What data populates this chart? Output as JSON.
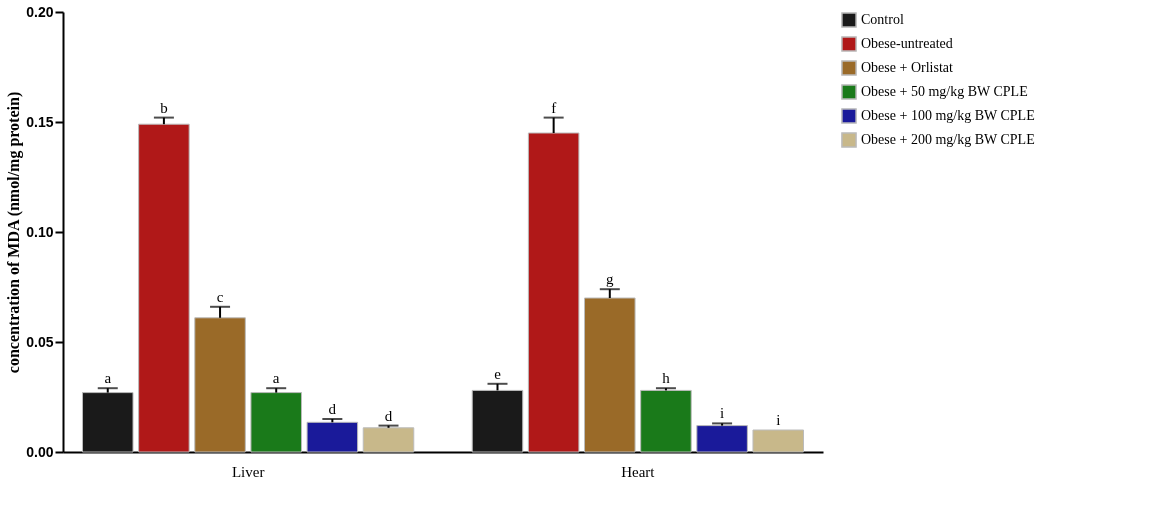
{
  "chart_data": {
    "type": "bar",
    "ylabel": "concentration of MDA (nmol/mg protein)",
    "categories": [
      "Liver",
      "Heart"
    ],
    "series": [
      {
        "name": "Control",
        "color": "#1a1a1a",
        "values": [
          0.027,
          0.028
        ],
        "errors": [
          [
            0.027,
            0.029
          ],
          [
            0.028,
            0.031
          ]
        ],
        "value_labels": [
          "a",
          "e"
        ]
      },
      {
        "name": "Obese-untreated",
        "color": "#b01818",
        "values": [
          0.149,
          0.145
        ],
        "errors": [
          [
            0.149,
            0.152
          ],
          [
            0.145,
            0.152
          ]
        ],
        "value_labels": [
          "b",
          "f"
        ]
      },
      {
        "name": "Obese + Orlistat",
        "color": "#9a6a28",
        "values": [
          0.061,
          0.07
        ],
        "errors": [
          [
            0.061,
            0.066
          ],
          [
            0.07,
            0.074
          ]
        ],
        "value_labels": [
          "c",
          "g"
        ]
      },
      {
        "name": "Obese + 50 mg/kg BW CPLE",
        "color": "#1a7a1a",
        "values": [
          0.027,
          0.028
        ],
        "errors": [
          [
            0.027,
            0.029
          ],
          [
            0.028,
            0.029
          ]
        ],
        "value_labels": [
          "a",
          "h"
        ]
      },
      {
        "name": "Obese + 100 mg/kg BW CPLE",
        "color": "#1a1a9a",
        "values": [
          0.0135,
          0.012
        ],
        "errors": [
          [
            0.0135,
            0.015
          ],
          [
            0.012,
            0.013
          ]
        ],
        "value_labels": [
          "d",
          "i"
        ]
      },
      {
        "name": "Obese +  200 mg/kg BW CPLE",
        "color": "#c8b88a",
        "values": [
          0.011,
          0.01
        ],
        "errors": [
          [
            0.011,
            0.012
          ],
          null
        ],
        "value_labels": [
          "d",
          "i"
        ]
      }
    ],
    "ylim": [
      0,
      0.2
    ],
    "yticks": [
      {
        "value": 0,
        "label": "0.00"
      },
      {
        "value": 0.05,
        "label": "0.05"
      },
      {
        "value": 0.1,
        "label": "0.10"
      },
      {
        "value": 0.15,
        "label": "0.15"
      },
      {
        "value": 0.2,
        "label": "0.20"
      }
    ],
    "grid": false,
    "legend": "right"
  }
}
